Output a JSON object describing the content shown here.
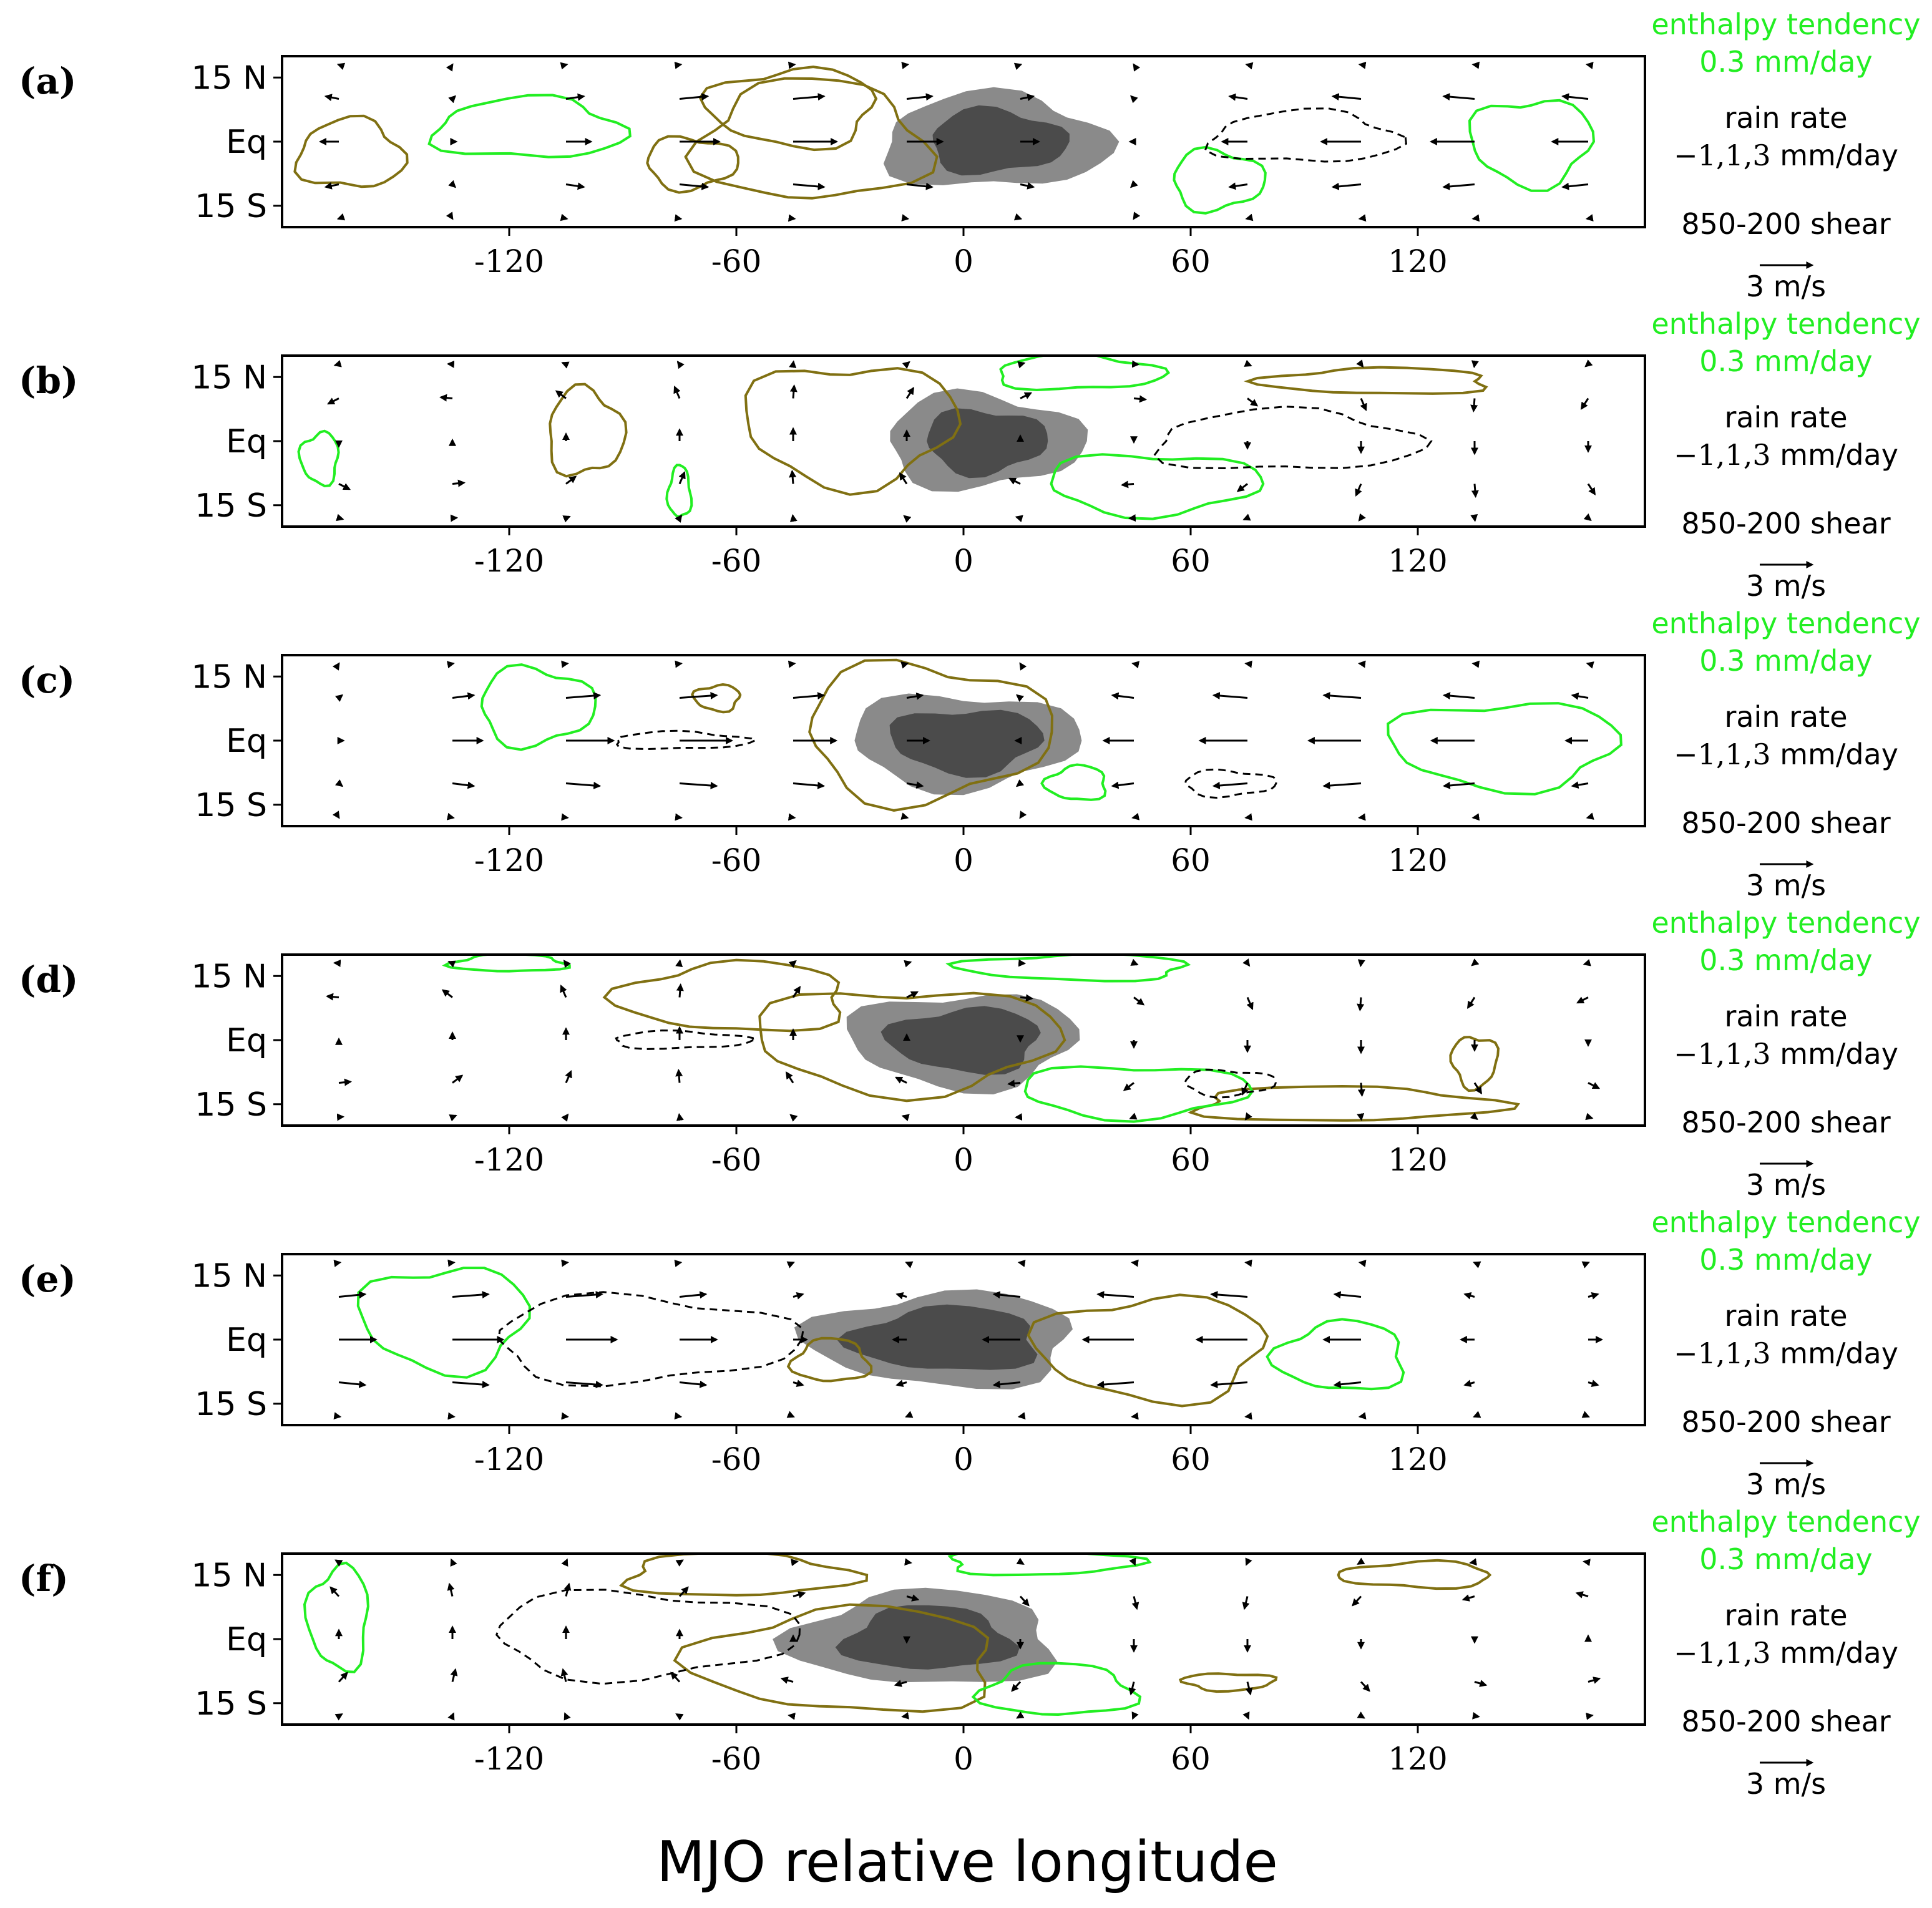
{
  "chart_data": {
    "type": "contour",
    "xlabel": "MJO relative longitude",
    "xlim": [
      -180,
      180
    ],
    "xticks": [
      -120,
      -60,
      0,
      60,
      120
    ],
    "ylim": [
      -20,
      20
    ],
    "yticks": [
      {
        "value": 15,
        "label": "15 N"
      },
      {
        "value": 0,
        "label": "Eq"
      },
      {
        "value": -15,
        "label": "15 S"
      }
    ],
    "legend": {
      "enthalpy_title": "enthalpy tendency",
      "enthalpy_value": "0.3 mm/day",
      "rain_title": "rain rate",
      "rain_levels": "−1,1,3",
      "rain_unit": " mm/day",
      "shear_title": "850-200 shear",
      "shear_ref": "3 m/s"
    },
    "colors": {
      "enthalpy_positive": "#22ee22",
      "enthalpy_negative": "#807012",
      "rain_light": "#8a8a8a",
      "rain_dark": "#4b4b4b",
      "arrows": "#000000"
    },
    "panels": [
      {
        "label": "(a)",
        "rain": {
          "center_lon": 8,
          "half_width_outer": 30,
          "half_width_inner": 18
        },
        "dashed": [
          {
            "lon": 90,
            "lat": 1,
            "rx": 25,
            "ry": 6
          }
        ],
        "green": [
          {
            "lon": -115,
            "lat": 3,
            "rx": 25,
            "ry": 7
          },
          {
            "lon": 67,
            "lat": -9,
            "rx": 12,
            "ry": 7
          },
          {
            "lon": 150,
            "lat": 0,
            "rx": 16,
            "ry": 10
          }
        ],
        "olive": [
          {
            "lon": -162,
            "lat": -3,
            "rx": 14,
            "ry": 8
          },
          {
            "lon": -72,
            "lat": -5,
            "rx": 12,
            "ry": 6
          },
          {
            "lon": -45,
            "lat": 8,
            "rx": 22,
            "ry": 9
          },
          {
            "lon": -40,
            "lat": 0,
            "rx": 30,
            "ry": 14
          }
        ],
        "shear_field": {
          "type": "westerly-easterly",
          "amp": 5,
          "lon_zero": 40
        }
      },
      {
        "label": "(b)",
        "rain": {
          "center_lon": 5,
          "half_width_outer": 26,
          "half_width_inner": 16
        },
        "dashed": [
          {
            "lon": 85,
            "lat": 0,
            "rx": 35,
            "ry": 7
          }
        ],
        "green": [
          {
            "lon": 30,
            "lat": 16,
            "rx": 22,
            "ry": 4
          },
          {
            "lon": 50,
            "lat": -10,
            "rx": 28,
            "ry": 7
          },
          {
            "lon": -170,
            "lat": -4,
            "rx": 5,
            "ry": 6
          },
          {
            "lon": -75,
            "lat": -12,
            "rx": 3,
            "ry": 6
          }
        ],
        "olive": [
          {
            "lon": -100,
            "lat": 2,
            "rx": 10,
            "ry": 10
          },
          {
            "lon": -30,
            "lat": 4,
            "rx": 28,
            "ry": 14
          },
          {
            "lon": 110,
            "lat": 14,
            "rx": 30,
            "ry": 3
          }
        ],
        "shear_field": {
          "type": "quadrupole",
          "amp": 4,
          "lon_zero": 40
        }
      },
      {
        "label": "(c)",
        "rain": {
          "center_lon": 0,
          "half_width_outer": 30,
          "half_width_inner": 20
        },
        "dashed": [
          {
            "lon": -75,
            "lat": 0,
            "rx": 18,
            "ry": 2
          },
          {
            "lon": 70,
            "lat": -10,
            "rx": 12,
            "ry": 3
          }
        ],
        "green": [
          {
            "lon": -113,
            "lat": 8,
            "rx": 15,
            "ry": 9
          },
          {
            "lon": 143,
            "lat": -1,
            "rx": 30,
            "ry": 10
          },
          {
            "lon": 30,
            "lat": -10,
            "rx": 8,
            "ry": 4
          }
        ],
        "olive": [
          {
            "lon": -10,
            "lat": 2,
            "rx": 32,
            "ry": 16
          },
          {
            "lon": -65,
            "lat": 10,
            "rx": 6,
            "ry": 3
          }
        ],
        "shear_field": {
          "type": "westerly-easterly",
          "amp": 6,
          "lon_zero": 10
        }
      },
      {
        "label": "(d)",
        "rain": {
          "center_lon": 0,
          "half_width_outer": 30,
          "half_width_inner": 20
        },
        "dashed": [
          {
            "lon": -75,
            "lat": 0,
            "rx": 18,
            "ry": 2
          },
          {
            "lon": 70,
            "lat": -10,
            "rx": 12,
            "ry": 3
          }
        ],
        "green": [
          {
            "lon": 45,
            "lat": -12,
            "rx": 30,
            "ry": 6
          },
          {
            "lon": 30,
            "lat": 17,
            "rx": 30,
            "ry": 3
          },
          {
            "lon": -120,
            "lat": 18,
            "rx": 15,
            "ry": 2
          }
        ],
        "olive": [
          {
            "lon": -15,
            "lat": 0,
            "rx": 40,
            "ry": 12
          },
          {
            "lon": -60,
            "lat": 10,
            "rx": 30,
            "ry": 8
          },
          {
            "lon": 100,
            "lat": -15,
            "rx": 40,
            "ry": 4
          },
          {
            "lon": 135,
            "lat": -5,
            "rx": 6,
            "ry": 6
          }
        ],
        "shear_field": {
          "type": "quadrupole",
          "amp": 4,
          "lon_zero": 10
        }
      },
      {
        "label": "(e)",
        "rain": {
          "center_lon": -5,
          "half_width_outer": 35,
          "half_width_inner": 25
        },
        "dashed": [
          {
            "lon": -85,
            "lat": 0,
            "rx": 40,
            "ry": 10
          }
        ],
        "green": [
          {
            "lon": -137,
            "lat": 5,
            "rx": 22,
            "ry": 12
          },
          {
            "lon": 100,
            "lat": -4,
            "rx": 17,
            "ry": 8
          }
        ],
        "olive": [
          {
            "lon": 50,
            "lat": -2,
            "rx": 30,
            "ry": 12
          },
          {
            "lon": -35,
            "lat": -5,
            "rx": 10,
            "ry": 5
          }
        ],
        "shear_field": {
          "type": "westerly-easterly",
          "amp": 6,
          "lon_zero": -30
        }
      },
      {
        "label": "(f)",
        "rain": {
          "center_lon": -10,
          "half_width_outer": 35,
          "half_width_inner": 22
        },
        "dashed": [
          {
            "lon": -85,
            "lat": 1,
            "rx": 40,
            "ry": 10
          }
        ],
        "green": [
          {
            "lon": -165,
            "lat": 5,
            "rx": 8,
            "ry": 12
          },
          {
            "lon": 25,
            "lat": -12,
            "rx": 20,
            "ry": 6
          },
          {
            "lon": 20,
            "lat": 18,
            "rx": 25,
            "ry": 3
          }
        ],
        "olive": [
          {
            "lon": -30,
            "lat": -5,
            "rx": 40,
            "ry": 12
          },
          {
            "lon": -60,
            "lat": 15,
            "rx": 30,
            "ry": 5
          },
          {
            "lon": 70,
            "lat": -10,
            "rx": 12,
            "ry": 2
          },
          {
            "lon": 120,
            "lat": 15,
            "rx": 20,
            "ry": 3
          }
        ],
        "shear_field": {
          "type": "quadrupole",
          "amp": 4,
          "lon_zero": -30
        }
      }
    ]
  }
}
